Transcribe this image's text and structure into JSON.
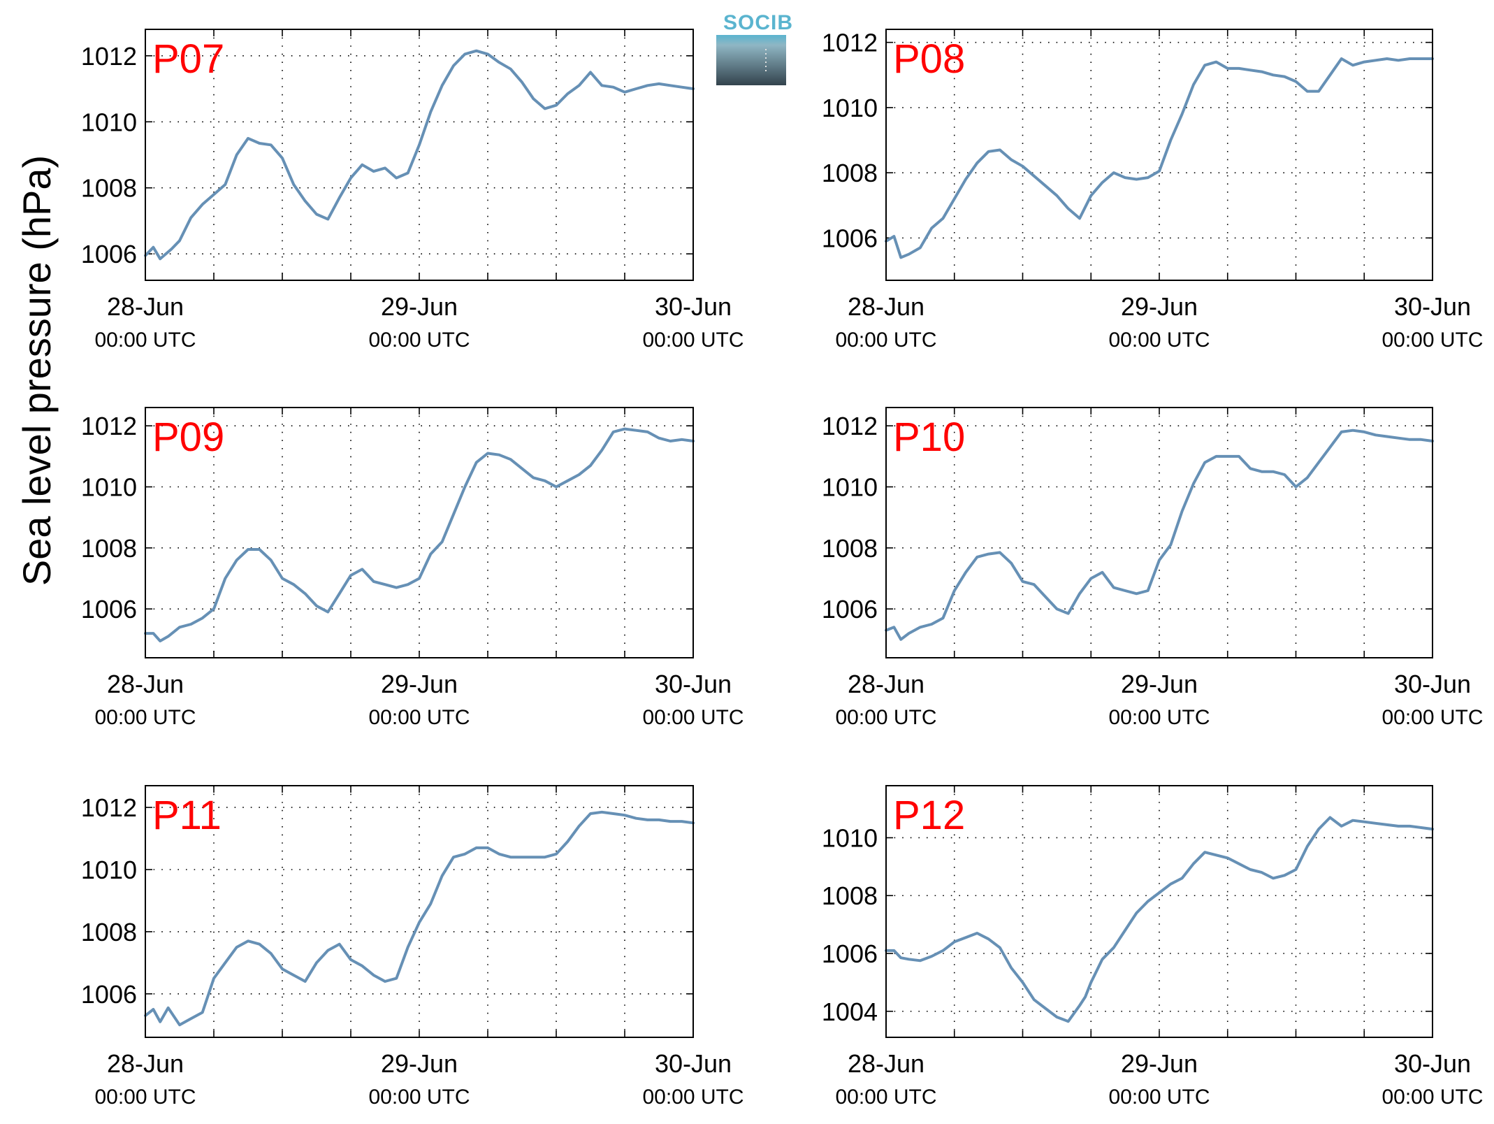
{
  "figure": {
    "ylabel": "Sea level pressure (hPa)",
    "logo_text": "SOCIB"
  },
  "colors": {
    "line": "#6690b5",
    "title": "#ff0000",
    "axis": "#000000",
    "logo_top": "#5ab4cf",
    "logo_bottom": "#33434d"
  },
  "chart_data": [
    {
      "type": "line",
      "title": "P07",
      "ylabel": "Sea level pressure (hPa)",
      "xlim": [
        0,
        48
      ],
      "ylim": [
        1005.2,
        1012.8
      ],
      "yticks": [
        1006,
        1008,
        1010,
        1012
      ],
      "xtick_labels": [
        [
          "28-Jun",
          "00:00 UTC"
        ],
        [
          "29-Jun",
          "00:00 UTC"
        ],
        [
          "30-Jun",
          "00:00 UTC"
        ]
      ],
      "grid": true,
      "x": [
        0,
        0.7,
        1.3,
        2.3,
        3,
        4,
        5,
        6,
        7,
        8,
        9,
        10,
        11,
        12,
        13,
        14,
        15,
        16,
        17,
        18,
        19,
        20,
        21,
        22,
        23,
        24,
        25,
        26,
        27,
        28,
        29,
        30,
        31,
        32,
        33,
        34,
        35,
        36,
        37,
        38,
        39,
        40,
        41,
        42,
        43,
        44,
        45,
        46,
        47,
        48
      ],
      "y": [
        1005.95,
        1006.2,
        1005.85,
        1006.15,
        1006.4,
        1007.1,
        1007.5,
        1007.8,
        1008.1,
        1009,
        1009.5,
        1009.35,
        1009.3,
        1008.9,
        1008.1,
        1007.6,
        1007.2,
        1007.05,
        1007.7,
        1008.3,
        1008.7,
        1008.5,
        1008.6,
        1008.3,
        1008.45,
        1009.3,
        1010.3,
        1011.1,
        1011.7,
        1012.05,
        1012.15,
        1012.05,
        1011.8,
        1011.6,
        1011.2,
        1010.7,
        1010.4,
        1010.5,
        1010.85,
        1011.1,
        1011.5,
        1011.1,
        1011.05,
        1010.9,
        1011,
        1011.1,
        1011.15,
        1011.1,
        1011.05,
        1011.0
      ]
    },
    {
      "type": "line",
      "title": "P08",
      "ylabel": "Sea level pressure (hPa)",
      "xlim": [
        0,
        48
      ],
      "ylim": [
        1004.7,
        1012.4
      ],
      "yticks": [
        1006,
        1008,
        1010,
        1012
      ],
      "xtick_labels": [
        [
          "28-Jun",
          "00:00 UTC"
        ],
        [
          "29-Jun",
          "00:00 UTC"
        ],
        [
          "30-Jun",
          "00:00 UTC"
        ]
      ],
      "grid": true,
      "x": [
        0,
        0.7,
        1.3,
        2,
        3,
        4,
        5,
        6,
        7,
        8,
        9,
        10,
        11,
        12,
        13,
        14,
        15,
        16,
        17,
        18,
        19,
        20,
        21,
        22,
        23,
        24,
        25,
        26,
        27,
        28,
        29,
        30,
        31,
        32,
        33,
        34,
        35,
        36,
        37,
        38,
        39,
        40,
        41,
        42,
        43,
        44,
        45,
        46,
        47,
        48
      ],
      "y": [
        1005.9,
        1006.05,
        1005.4,
        1005.5,
        1005.7,
        1006.3,
        1006.6,
        1007.2,
        1007.8,
        1008.3,
        1008.65,
        1008.7,
        1008.4,
        1008.2,
        1007.9,
        1007.6,
        1007.3,
        1006.9,
        1006.6,
        1007.3,
        1007.7,
        1008.0,
        1007.85,
        1007.8,
        1007.85,
        1008.05,
        1009.0,
        1009.8,
        1010.7,
        1011.3,
        1011.4,
        1011.2,
        1011.2,
        1011.15,
        1011.1,
        1011.0,
        1010.95,
        1010.8,
        1010.5,
        1010.5,
        1011.0,
        1011.5,
        1011.3,
        1011.4,
        1011.45,
        1011.5,
        1011.45,
        1011.5,
        1011.5,
        1011.5
      ]
    },
    {
      "type": "line",
      "title": "P09",
      "ylabel": "Sea level pressure (hPa)",
      "xlim": [
        0,
        48
      ],
      "ylim": [
        1004.4,
        1012.6
      ],
      "yticks": [
        1006,
        1008,
        1010,
        1012
      ],
      "xtick_labels": [
        [
          "28-Jun",
          "00:00 UTC"
        ],
        [
          "29-Jun",
          "00:00 UTC"
        ],
        [
          "30-Jun",
          "00:00 UTC"
        ]
      ],
      "grid": true,
      "x": [
        0,
        0.7,
        1.3,
        2,
        3,
        4,
        5,
        6,
        7,
        8,
        9,
        10,
        11,
        12,
        13,
        14,
        15,
        16,
        17,
        18,
        19,
        20,
        21,
        22,
        23,
        24,
        25,
        26,
        27,
        28,
        29,
        30,
        31,
        32,
        33,
        34,
        35,
        36,
        37,
        38,
        39,
        40,
        41,
        42,
        43,
        44,
        45,
        46,
        47,
        48
      ],
      "y": [
        1005.2,
        1005.2,
        1004.95,
        1005.1,
        1005.4,
        1005.5,
        1005.7,
        1006.0,
        1007.0,
        1007.6,
        1007.95,
        1007.95,
        1007.6,
        1007.0,
        1006.8,
        1006.5,
        1006.1,
        1005.9,
        1006.5,
        1007.1,
        1007.3,
        1006.9,
        1006.8,
        1006.7,
        1006.8,
        1007.0,
        1007.8,
        1008.2,
        1009.1,
        1010.0,
        1010.8,
        1011.1,
        1011.05,
        1010.9,
        1010.6,
        1010.3,
        1010.2,
        1010.0,
        1010.2,
        1010.4,
        1010.7,
        1011.2,
        1011.8,
        1011.9,
        1011.85,
        1011.8,
        1011.6,
        1011.5,
        1011.55,
        1011.5
      ]
    },
    {
      "type": "line",
      "title": "P10",
      "ylabel": "Sea level pressure (hPa)",
      "xlim": [
        0,
        48
      ],
      "ylim": [
        1004.4,
        1012.6
      ],
      "yticks": [
        1006,
        1008,
        1010,
        1012
      ],
      "xtick_labels": [
        [
          "28-Jun",
          "00:00 UTC"
        ],
        [
          "29-Jun",
          "00:00 UTC"
        ],
        [
          "30-Jun",
          "00:00 UTC"
        ]
      ],
      "grid": true,
      "x": [
        0,
        0.7,
        1.3,
        2,
        3,
        4,
        5,
        6,
        7,
        8,
        9,
        10,
        11,
        12,
        13,
        14,
        15,
        16,
        17,
        18,
        19,
        20,
        21,
        22,
        23,
        24,
        25,
        26,
        27,
        28,
        29,
        30,
        31,
        32,
        33,
        34,
        35,
        36,
        37,
        38,
        39,
        40,
        41,
        42,
        43,
        44,
        45,
        46,
        47,
        48
      ],
      "y": [
        1005.3,
        1005.4,
        1005.0,
        1005.2,
        1005.4,
        1005.5,
        1005.7,
        1006.6,
        1007.2,
        1007.7,
        1007.8,
        1007.85,
        1007.5,
        1006.9,
        1006.8,
        1006.4,
        1006.0,
        1005.85,
        1006.5,
        1007.0,
        1007.2,
        1006.7,
        1006.6,
        1006.5,
        1006.6,
        1007.6,
        1008.1,
        1009.2,
        1010.1,
        1010.8,
        1011.0,
        1011.0,
        1011.0,
        1010.6,
        1010.5,
        1010.5,
        1010.4,
        1010.0,
        1010.3,
        1010.8,
        1011.3,
        1011.8,
        1011.85,
        1011.8,
        1011.7,
        1011.65,
        1011.6,
        1011.55,
        1011.55,
        1011.5
      ]
    },
    {
      "type": "line",
      "title": "P11",
      "ylabel": "Sea level pressure (hPa)",
      "xlim": [
        0,
        48
      ],
      "ylim": [
        1004.6,
        1012.7
      ],
      "yticks": [
        1006,
        1008,
        1010,
        1012
      ],
      "xtick_labels": [
        [
          "28-Jun",
          "00:00 UTC"
        ],
        [
          "29-Jun",
          "00:00 UTC"
        ],
        [
          "30-Jun",
          "00:00 UTC"
        ]
      ],
      "grid": true,
      "x": [
        0,
        0.7,
        1.3,
        2,
        3,
        4,
        5,
        6,
        7,
        8,
        9,
        10,
        11,
        12,
        13,
        14,
        15,
        16,
        17,
        18,
        19,
        20,
        21,
        22,
        23,
        24,
        25,
        26,
        27,
        28,
        29,
        30,
        31,
        32,
        33,
        34,
        35,
        36,
        37,
        38,
        39,
        40,
        41,
        42,
        43,
        44,
        45,
        46,
        47,
        48
      ],
      "y": [
        1005.3,
        1005.5,
        1005.1,
        1005.55,
        1005.0,
        1005.2,
        1005.4,
        1006.5,
        1007.0,
        1007.5,
        1007.7,
        1007.6,
        1007.3,
        1006.8,
        1006.6,
        1006.4,
        1007.0,
        1007.4,
        1007.6,
        1007.1,
        1006.9,
        1006.6,
        1006.4,
        1006.5,
        1007.5,
        1008.3,
        1008.9,
        1009.8,
        1010.4,
        1010.5,
        1010.7,
        1010.7,
        1010.5,
        1010.4,
        1010.4,
        1010.4,
        1010.4,
        1010.5,
        1010.9,
        1011.4,
        1011.8,
        1011.85,
        1011.8,
        1011.75,
        1011.65,
        1011.6,
        1011.6,
        1011.55,
        1011.55,
        1011.5
      ]
    },
    {
      "type": "line",
      "title": "P12",
      "ylabel": "Sea level pressure (hPa)",
      "xlim": [
        0,
        48
      ],
      "ylim": [
        1003.1,
        1011.8
      ],
      "yticks": [
        1004,
        1006,
        1008,
        1010
      ],
      "xtick_labels": [
        [
          "28-Jun",
          "00:00 UTC"
        ],
        [
          "29-Jun",
          "00:00 UTC"
        ],
        [
          "30-Jun",
          "00:00 UTC"
        ]
      ],
      "grid": true,
      "x": [
        0,
        0.7,
        1.3,
        2,
        3,
        4,
        5,
        6,
        7,
        8,
        9,
        10,
        11,
        12,
        13,
        14,
        15,
        16,
        17,
        17.5,
        18,
        19,
        20,
        21,
        22,
        23,
        24,
        25,
        26,
        27,
        28,
        29,
        30,
        31,
        32,
        33,
        34,
        35,
        36,
        37,
        38,
        39,
        40,
        41,
        42,
        43,
        44,
        45,
        46,
        47,
        48
      ],
      "y": [
        1006.1,
        1006.1,
        1005.85,
        1005.8,
        1005.75,
        1005.9,
        1006.1,
        1006.4,
        1006.55,
        1006.7,
        1006.5,
        1006.2,
        1005.5,
        1005.0,
        1004.4,
        1004.1,
        1003.8,
        1003.65,
        1004.2,
        1004.5,
        1005.0,
        1005.8,
        1006.2,
        1006.8,
        1007.4,
        1007.8,
        1008.1,
        1008.4,
        1008.6,
        1009.1,
        1009.5,
        1009.4,
        1009.3,
        1009.1,
        1008.9,
        1008.8,
        1008.6,
        1008.7,
        1008.9,
        1009.7,
        1010.3,
        1010.7,
        1010.4,
        1010.6,
        1010.55,
        1010.5,
        1010.45,
        1010.4,
        1010.4,
        1010.35,
        1010.3
      ]
    }
  ]
}
